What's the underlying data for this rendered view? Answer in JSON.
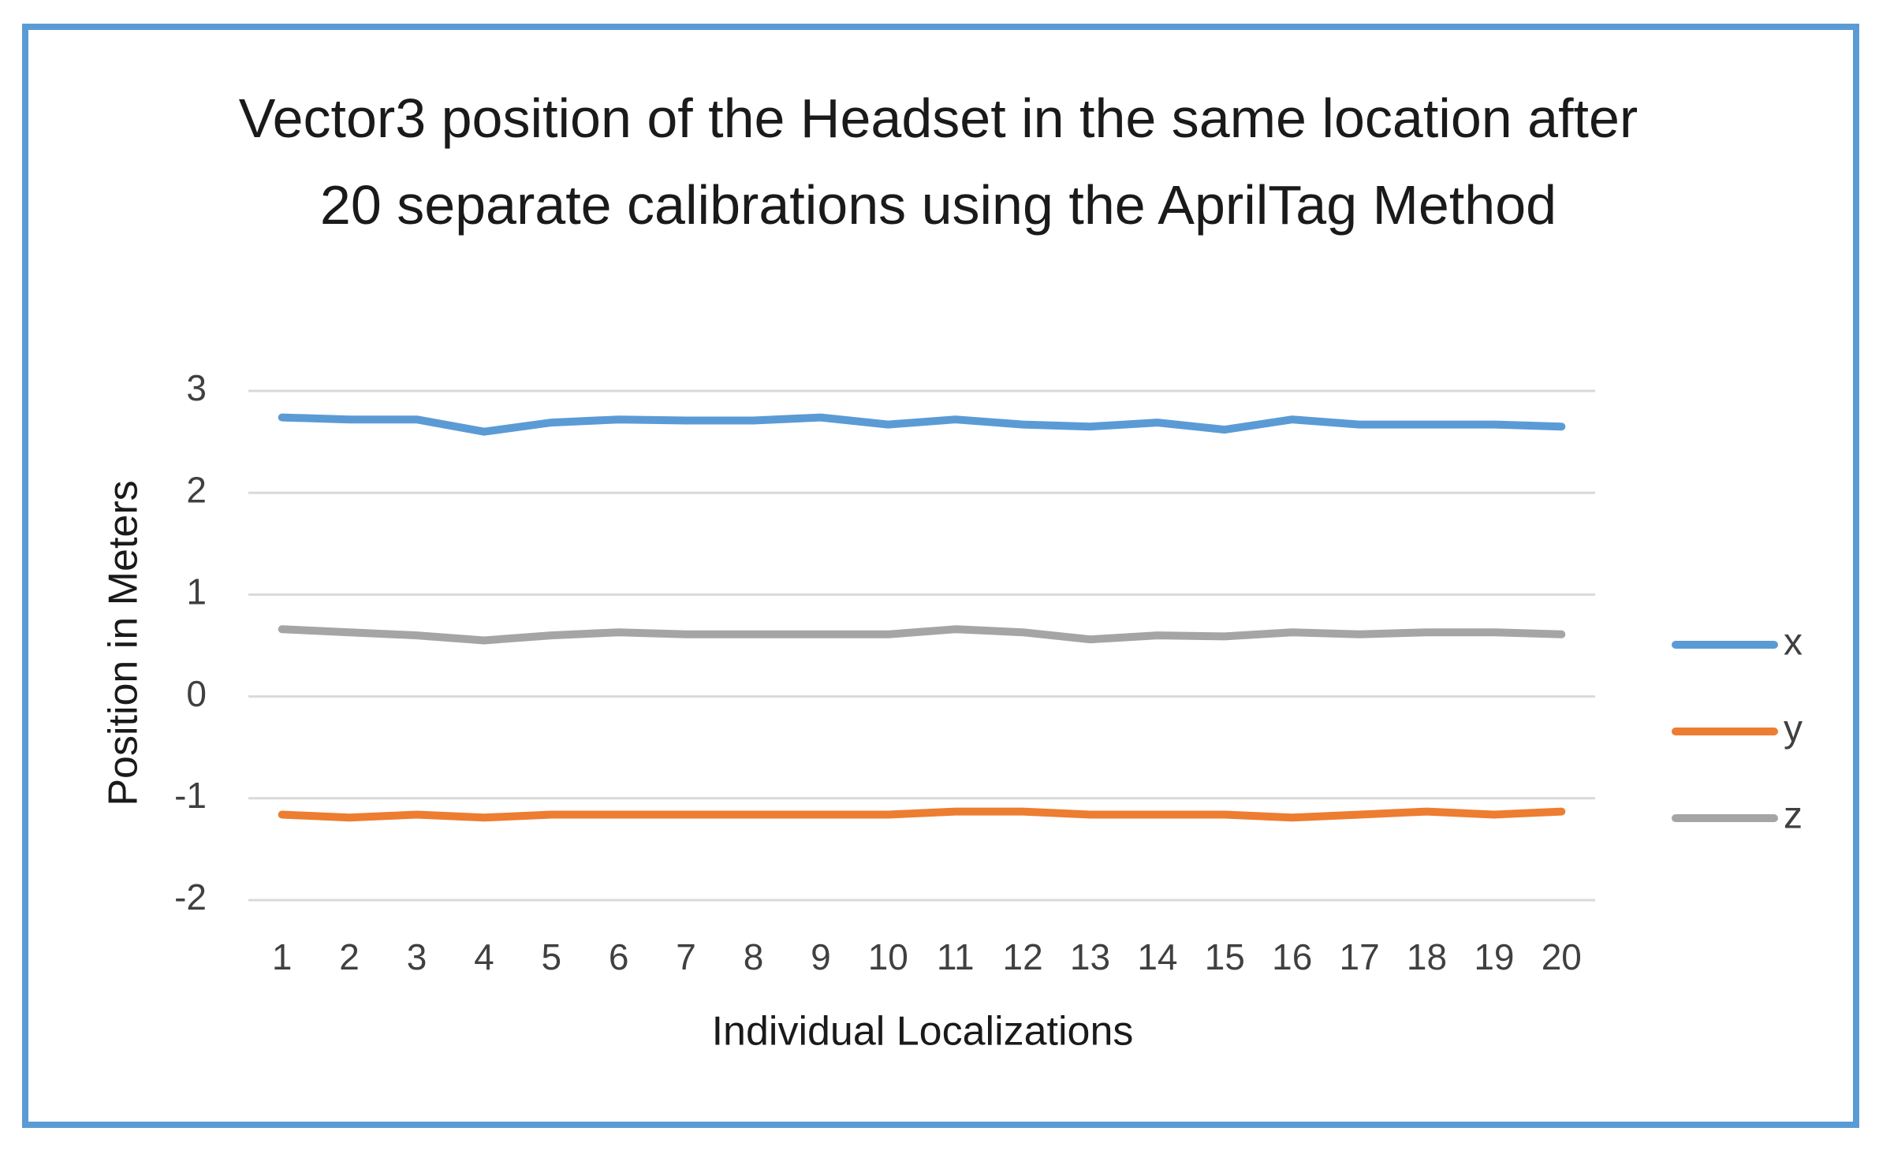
{
  "chart_data": {
    "type": "line",
    "title": "Vector3 position of the Headset in the same location after 20 separate calibrations using the AprilTag Method",
    "x_label": "Individual Localizations",
    "y_label": "Position in Meters",
    "categories": [
      1,
      2,
      3,
      4,
      5,
      6,
      7,
      8,
      9,
      10,
      11,
      12,
      13,
      14,
      15,
      16,
      17,
      18,
      19,
      20
    ],
    "series": [
      {
        "name": "x",
        "color": "#5b9bd5",
        "values": [
          2.74,
          2.72,
          2.72,
          2.6,
          2.69,
          2.72,
          2.71,
          2.71,
          2.74,
          2.67,
          2.72,
          2.67,
          2.65,
          2.69,
          2.62,
          2.72,
          2.67,
          2.67,
          2.67,
          2.65
        ]
      },
      {
        "name": "y",
        "color": "#ed7d31",
        "values": [
          -1.16,
          -1.19,
          -1.16,
          -1.19,
          -1.16,
          -1.16,
          -1.16,
          -1.16,
          -1.16,
          -1.16,
          -1.13,
          -1.13,
          -1.16,
          -1.16,
          -1.16,
          -1.19,
          -1.16,
          -1.13,
          -1.16,
          -1.13
        ]
      },
      {
        "name": "z",
        "color": "#a5a5a5",
        "values": [
          0.66,
          0.63,
          0.6,
          0.55,
          0.6,
          0.63,
          0.61,
          0.61,
          0.61,
          0.61,
          0.66,
          0.63,
          0.56,
          0.6,
          0.59,
          0.63,
          0.61,
          0.63,
          0.63,
          0.61
        ]
      }
    ],
    "ylim": [
      -2,
      3
    ],
    "yticks": [
      -2,
      -1,
      0,
      1,
      2,
      3
    ],
    "grid": true,
    "legend": "right"
  }
}
